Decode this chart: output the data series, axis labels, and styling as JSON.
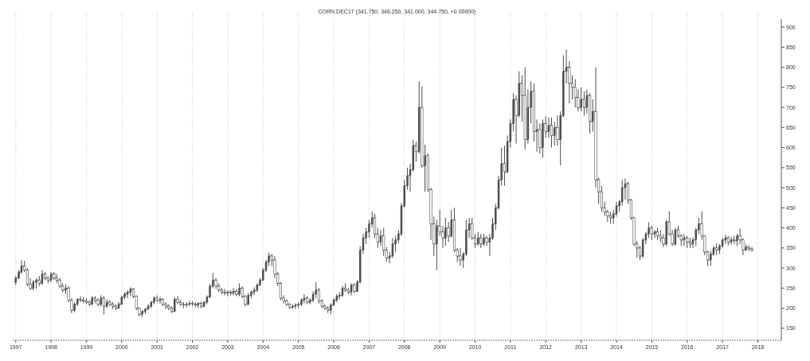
{
  "chart_data": {
    "type": "candlestick",
    "title": "CORN.DEC17 (341.750, 346.250, 341.000, 344.750, +0.00000)",
    "color": "#4d4d4d",
    "grid": "x",
    "xlim": [
      "1996-12",
      "2018-09"
    ],
    "xticks": [
      "1997",
      "1998",
      "1999",
      "2000",
      "2001",
      "2002",
      "2003",
      "2004",
      "2005",
      "2006",
      "2007",
      "2008",
      "2009",
      "2010",
      "2011",
      "2012",
      "2013",
      "2014",
      "2015",
      "2016",
      "2017",
      "2018"
    ],
    "ylim": [
      120,
      920
    ],
    "yticks": [
      150,
      200,
      250,
      300,
      350,
      400,
      450,
      500,
      550,
      600,
      650,
      700,
      750,
      800,
      850,
      900
    ],
    "x": [
      "1997-01",
      "1997-02",
      "1997-03",
      "1997-04",
      "1997-05",
      "1997-06",
      "1997-07",
      "1997-08",
      "1997-09",
      "1997-10",
      "1997-11",
      "1997-12",
      "1998-01",
      "1998-02",
      "1998-03",
      "1998-04",
      "1998-05",
      "1998-06",
      "1998-07",
      "1998-08",
      "1998-09",
      "1998-10",
      "1998-11",
      "1998-12",
      "1999-01",
      "1999-02",
      "1999-03",
      "1999-04",
      "1999-05",
      "1999-06",
      "1999-07",
      "1999-08",
      "1999-09",
      "1999-10",
      "1999-11",
      "1999-12",
      "2000-01",
      "2000-02",
      "2000-03",
      "2000-04",
      "2000-05",
      "2000-06",
      "2000-07",
      "2000-08",
      "2000-09",
      "2000-10",
      "2000-11",
      "2000-12",
      "2001-01",
      "2001-02",
      "2001-03",
      "2001-04",
      "2001-05",
      "2001-06",
      "2001-07",
      "2001-08",
      "2001-09",
      "2001-10",
      "2001-11",
      "2001-12",
      "2002-01",
      "2002-02",
      "2002-03",
      "2002-04",
      "2002-05",
      "2002-06",
      "2002-07",
      "2002-08",
      "2002-09",
      "2002-10",
      "2002-11",
      "2002-12",
      "2003-01",
      "2003-02",
      "2003-03",
      "2003-04",
      "2003-05",
      "2003-06",
      "2003-07",
      "2003-08",
      "2003-09",
      "2003-10",
      "2003-11",
      "2003-12",
      "2004-01",
      "2004-02",
      "2004-03",
      "2004-04",
      "2004-05",
      "2004-06",
      "2004-07",
      "2004-08",
      "2004-09",
      "2004-10",
      "2004-11",
      "2004-12",
      "2005-01",
      "2005-02",
      "2005-03",
      "2005-04",
      "2005-05",
      "2005-06",
      "2005-07",
      "2005-08",
      "2005-09",
      "2005-10",
      "2005-11",
      "2005-12",
      "2006-01",
      "2006-02",
      "2006-03",
      "2006-04",
      "2006-05",
      "2006-06",
      "2006-07",
      "2006-08",
      "2006-09",
      "2006-10",
      "2006-11",
      "2006-12",
      "2007-01",
      "2007-02",
      "2007-03",
      "2007-04",
      "2007-05",
      "2007-06",
      "2007-07",
      "2007-08",
      "2007-09",
      "2007-10",
      "2007-11",
      "2007-12",
      "2008-01",
      "2008-02",
      "2008-03",
      "2008-04",
      "2008-05",
      "2008-06",
      "2008-07",
      "2008-08",
      "2008-09",
      "2008-10",
      "2008-11",
      "2008-12",
      "2009-01",
      "2009-02",
      "2009-03",
      "2009-04",
      "2009-05",
      "2009-06",
      "2009-07",
      "2009-08",
      "2009-09",
      "2009-10",
      "2009-11",
      "2009-12",
      "2010-01",
      "2010-02",
      "2010-03",
      "2010-04",
      "2010-05",
      "2010-06",
      "2010-07",
      "2010-08",
      "2010-09",
      "2010-10",
      "2010-11",
      "2010-12",
      "2011-01",
      "2011-02",
      "2011-03",
      "2011-04",
      "2011-05",
      "2011-06",
      "2011-07",
      "2011-08",
      "2011-09",
      "2011-10",
      "2011-11",
      "2011-12",
      "2012-01",
      "2012-02",
      "2012-03",
      "2012-04",
      "2012-05",
      "2012-06",
      "2012-07",
      "2012-08",
      "2012-09",
      "2012-10",
      "2012-11",
      "2012-12",
      "2013-01",
      "2013-02",
      "2013-03",
      "2013-04",
      "2013-05",
      "2013-06",
      "2013-07",
      "2013-08",
      "2013-09",
      "2013-10",
      "2013-11",
      "2013-12",
      "2014-01",
      "2014-02",
      "2014-03",
      "2014-04",
      "2014-05",
      "2014-06",
      "2014-07",
      "2014-08",
      "2014-09",
      "2014-10",
      "2014-11",
      "2014-12",
      "2015-01",
      "2015-02",
      "2015-03",
      "2015-04",
      "2015-05",
      "2015-06",
      "2015-07",
      "2015-08",
      "2015-09",
      "2015-10",
      "2015-11",
      "2015-12",
      "2016-01",
      "2016-02",
      "2016-03",
      "2016-04",
      "2016-05",
      "2016-06",
      "2016-07",
      "2016-08",
      "2016-09",
      "2016-10",
      "2016-11",
      "2016-12",
      "2017-01",
      "2017-02",
      "2017-03",
      "2017-04",
      "2017-05",
      "2017-06",
      "2017-07",
      "2017-08",
      "2017-09",
      "2017-10",
      "2017-11"
    ],
    "ohlc": [
      [
        265,
        280,
        258,
        275
      ],
      [
        275,
        295,
        272,
        290
      ],
      [
        290,
        320,
        285,
        305
      ],
      [
        305,
        318,
        290,
        295
      ],
      [
        295,
        300,
        255,
        260
      ],
      [
        260,
        275,
        245,
        250
      ],
      [
        250,
        270,
        245,
        265
      ],
      [
        265,
        275,
        248,
        270
      ],
      [
        270,
        280,
        255,
        262
      ],
      [
        262,
        295,
        258,
        285
      ],
      [
        285,
        290,
        270,
        275
      ],
      [
        275,
        280,
        262,
        270
      ],
      [
        270,
        290,
        265,
        285
      ],
      [
        285,
        290,
        270,
        275
      ],
      [
        275,
        285,
        262,
        270
      ],
      [
        270,
        275,
        250,
        255
      ],
      [
        255,
        262,
        240,
        245
      ],
      [
        245,
        260,
        235,
        250
      ],
      [
        250,
        255,
        215,
        220
      ],
      [
        220,
        225,
        188,
        195
      ],
      [
        195,
        215,
        190,
        210
      ],
      [
        210,
        225,
        205,
        222
      ],
      [
        222,
        230,
        215,
        220
      ],
      [
        220,
        228,
        212,
        218
      ],
      [
        218,
        225,
        210,
        215
      ],
      [
        215,
        220,
        205,
        210
      ],
      [
        210,
        230,
        208,
        225
      ],
      [
        225,
        230,
        212,
        220
      ],
      [
        220,
        225,
        205,
        210
      ],
      [
        210,
        232,
        205,
        225
      ],
      [
        225,
        230,
        185,
        205
      ],
      [
        205,
        222,
        200,
        215
      ],
      [
        215,
        220,
        205,
        210
      ],
      [
        210,
        215,
        198,
        205
      ],
      [
        205,
        210,
        195,
        200
      ],
      [
        200,
        215,
        198,
        210
      ],
      [
        210,
        230,
        208,
        228
      ],
      [
        228,
        240,
        222,
        235
      ],
      [
        235,
        245,
        225,
        240
      ],
      [
        240,
        252,
        230,
        248
      ],
      [
        248,
        250,
        225,
        230
      ],
      [
        230,
        232,
        195,
        200
      ],
      [
        200,
        202,
        180,
        185
      ],
      [
        185,
        195,
        178,
        192
      ],
      [
        192,
        200,
        185,
        198
      ],
      [
        198,
        210,
        195,
        205
      ],
      [
        205,
        218,
        200,
        215
      ],
      [
        215,
        230,
        210,
        225
      ],
      [
        225,
        232,
        215,
        220
      ],
      [
        220,
        228,
        212,
        222
      ],
      [
        222,
        225,
        205,
        210
      ],
      [
        210,
        215,
        198,
        205
      ],
      [
        205,
        210,
        195,
        200
      ],
      [
        200,
        205,
        188,
        192
      ],
      [
        192,
        228,
        190,
        222
      ],
      [
        222,
        230,
        210,
        215
      ],
      [
        215,
        220,
        205,
        210
      ],
      [
        210,
        215,
        200,
        208
      ],
      [
        208,
        215,
        202,
        210
      ],
      [
        210,
        218,
        205,
        212
      ],
      [
        212,
        218,
        205,
        210
      ],
      [
        210,
        215,
        202,
        208
      ],
      [
        208,
        215,
        200,
        212
      ],
      [
        212,
        216,
        200,
        205
      ],
      [
        205,
        218,
        202,
        215
      ],
      [
        215,
        232,
        210,
        228
      ],
      [
        228,
        260,
        225,
        255
      ],
      [
        255,
        288,
        250,
        270
      ],
      [
        270,
        275,
        248,
        255
      ],
      [
        255,
        262,
        240,
        245
      ],
      [
        245,
        250,
        235,
        240
      ],
      [
        240,
        248,
        232,
        238
      ],
      [
        238,
        245,
        230,
        240
      ],
      [
        240,
        245,
        232,
        238
      ],
      [
        238,
        250,
        232,
        242
      ],
      [
        242,
        248,
        230,
        235
      ],
      [
        235,
        262,
        230,
        250
      ],
      [
        250,
        255,
        225,
        230
      ],
      [
        230,
        232,
        205,
        210
      ],
      [
        210,
        238,
        207,
        232
      ],
      [
        232,
        245,
        225,
        240
      ],
      [
        240,
        252,
        232,
        245
      ],
      [
        245,
        262,
        240,
        258
      ],
      [
        258,
        275,
        255,
        270
      ],
      [
        270,
        300,
        268,
        295
      ],
      [
        295,
        320,
        290,
        315
      ],
      [
        315,
        338,
        305,
        330
      ],
      [
        330,
        335,
        305,
        320
      ],
      [
        320,
        330,
        275,
        285
      ],
      [
        285,
        290,
        255,
        262
      ],
      [
        262,
        265,
        220,
        225
      ],
      [
        225,
        232,
        212,
        218
      ],
      [
        218,
        222,
        205,
        210
      ],
      [
        210,
        212,
        198,
        202
      ],
      [
        202,
        210,
        198,
        205
      ],
      [
        205,
        212,
        198,
        208
      ],
      [
        208,
        215,
        200,
        210
      ],
      [
        210,
        225,
        205,
        220
      ],
      [
        220,
        235,
        212,
        225
      ],
      [
        225,
        230,
        210,
        215
      ],
      [
        215,
        225,
        210,
        220
      ],
      [
        220,
        242,
        215,
        235
      ],
      [
        235,
        265,
        225,
        245
      ],
      [
        245,
        250,
        212,
        218
      ],
      [
        218,
        222,
        200,
        205
      ],
      [
        205,
        210,
        196,
        200
      ],
      [
        200,
        205,
        188,
        195
      ],
      [
        195,
        212,
        185,
        208
      ],
      [
        208,
        225,
        205,
        220
      ],
      [
        220,
        235,
        215,
        230
      ],
      [
        230,
        240,
        222,
        232
      ],
      [
        232,
        255,
        228,
        250
      ],
      [
        250,
        262,
        240,
        245
      ],
      [
        245,
        250,
        235,
        240
      ],
      [
        240,
        262,
        232,
        258
      ],
      [
        258,
        262,
        238,
        242
      ],
      [
        242,
        270,
        240,
        265
      ],
      [
        265,
        355,
        262,
        345
      ],
      [
        345,
        385,
        335,
        375
      ],
      [
        375,
        400,
        360,
        390
      ],
      [
        390,
        420,
        375,
        410
      ],
      [
        410,
        440,
        400,
        425
      ],
      [
        425,
        435,
        375,
        385
      ],
      [
        385,
        400,
        350,
        365
      ],
      [
        365,
        395,
        355,
        380
      ],
      [
        380,
        400,
        330,
        345
      ],
      [
        345,
        352,
        315,
        325
      ],
      [
        325,
        340,
        312,
        330
      ],
      [
        330,
        375,
        325,
        360
      ],
      [
        360,
        380,
        340,
        370
      ],
      [
        370,
        395,
        362,
        385
      ],
      [
        385,
        462,
        380,
        455
      ],
      [
        455,
        520,
        450,
        505
      ],
      [
        505,
        550,
        495,
        530
      ],
      [
        530,
        560,
        490,
        545
      ],
      [
        545,
        620,
        540,
        605
      ],
      [
        605,
        615,
        565,
        590
      ],
      [
        590,
        765,
        585,
        700
      ],
      [
        700,
        752,
        550,
        555
      ],
      [
        555,
        607,
        490,
        580
      ],
      [
        580,
        585,
        489,
        495
      ],
      [
        495,
        500,
        370,
        410
      ],
      [
        410,
        428,
        330,
        360
      ],
      [
        360,
        420,
        295,
        405
      ],
      [
        405,
        445,
        380,
        390
      ],
      [
        390,
        405,
        350,
        375
      ],
      [
        375,
        425,
        355,
        400
      ],
      [
        400,
        415,
        365,
        380
      ],
      [
        380,
        445,
        375,
        420
      ],
      [
        420,
        450,
        340,
        345
      ],
      [
        345,
        350,
        315,
        330
      ],
      [
        330,
        350,
        305,
        320
      ],
      [
        320,
        340,
        300,
        335
      ],
      [
        335,
        420,
        330,
        395
      ],
      [
        395,
        425,
        375,
        410
      ],
      [
        410,
        425,
        370,
        375
      ],
      [
        375,
        385,
        350,
        360
      ],
      [
        360,
        390,
        355,
        375
      ],
      [
        375,
        385,
        350,
        360
      ],
      [
        360,
        385,
        355,
        375
      ],
      [
        375,
        380,
        355,
        365
      ],
      [
        365,
        385,
        330,
        375
      ],
      [
        375,
        425,
        370,
        410
      ],
      [
        410,
        460,
        395,
        450
      ],
      [
        450,
        530,
        445,
        520
      ],
      [
        520,
        600,
        505,
        560
      ],
      [
        560,
        605,
        505,
        540
      ],
      [
        540,
        630,
        535,
        615
      ],
      [
        615,
        670,
        600,
        660
      ],
      [
        660,
        735,
        640,
        720
      ],
      [
        720,
        730,
        610,
        680
      ],
      [
        680,
        790,
        675,
        760
      ],
      [
        760,
        780,
        665,
        730
      ],
      [
        730,
        800,
        595,
        620
      ],
      [
        620,
        745,
        610,
        700
      ],
      [
        700,
        765,
        660,
        740
      ],
      [
        740,
        760,
        615,
        640
      ],
      [
        640,
        670,
        590,
        645
      ],
      [
        645,
        660,
        585,
        600
      ],
      [
        600,
        670,
        575,
        660
      ],
      [
        660,
        678,
        625,
        640
      ],
      [
        640,
        675,
        625,
        655
      ],
      [
        655,
        675,
        600,
        630
      ],
      [
        630,
        665,
        605,
        650
      ],
      [
        650,
        680,
        605,
        620
      ],
      [
        620,
        690,
        556,
        680
      ],
      [
        680,
        830,
        675,
        790
      ],
      [
        790,
        844,
        760,
        800
      ],
      [
        800,
        815,
        710,
        760
      ],
      [
        760,
        780,
        720,
        750
      ],
      [
        750,
        770,
        700,
        725
      ],
      [
        725,
        745,
        690,
        700
      ],
      [
        700,
        750,
        690,
        720
      ],
      [
        720,
        740,
        680,
        700
      ],
      [
        700,
        745,
        685,
        730
      ],
      [
        730,
        735,
        635,
        665
      ],
      [
        665,
        720,
        640,
        690
      ],
      [
        690,
        800,
        500,
        520
      ],
      [
        520,
        525,
        460,
        490
      ],
      [
        490,
        505,
        440,
        450
      ],
      [
        450,
        465,
        430,
        440
      ],
      [
        440,
        445,
        415,
        430
      ],
      [
        430,
        440,
        410,
        425
      ],
      [
        425,
        445,
        410,
        435
      ],
      [
        435,
        465,
        428,
        455
      ],
      [
        455,
        470,
        440,
        465
      ],
      [
        465,
        520,
        455,
        500
      ],
      [
        500,
        523,
        470,
        510
      ],
      [
        510,
        515,
        460,
        470
      ],
      [
        470,
        472,
        420,
        425
      ],
      [
        425,
        428,
        355,
        360
      ],
      [
        360,
        368,
        325,
        350
      ],
      [
        350,
        355,
        320,
        330
      ],
      [
        330,
        375,
        325,
        370
      ],
      [
        370,
        390,
        360,
        385
      ],
      [
        385,
        414,
        375,
        400
      ],
      [
        400,
        405,
        370,
        385
      ],
      [
        385,
        395,
        375,
        390
      ],
      [
        390,
        400,
        370,
        380
      ],
      [
        380,
        395,
        365,
        375
      ],
      [
        375,
        385,
        352,
        360
      ],
      [
        360,
        420,
        355,
        415
      ],
      [
        415,
        441,
        380,
        385
      ],
      [
        385,
        395,
        355,
        360
      ],
      [
        360,
        400,
        355,
        395
      ],
      [
        395,
        405,
        375,
        380
      ],
      [
        380,
        385,
        355,
        370
      ],
      [
        370,
        385,
        355,
        375
      ],
      [
        375,
        380,
        350,
        365
      ],
      [
        365,
        375,
        350,
        360
      ],
      [
        360,
        376,
        350,
        370
      ],
      [
        370,
        400,
        355,
        395
      ],
      [
        395,
        425,
        385,
        410
      ],
      [
        410,
        441,
        370,
        380
      ],
      [
        380,
        382,
        332,
        340
      ],
      [
        340,
        343,
        305,
        320
      ],
      [
        320,
        343,
        305,
        335
      ],
      [
        335,
        355,
        330,
        350
      ],
      [
        350,
        361,
        332,
        345
      ],
      [
        345,
        360,
        335,
        355
      ],
      [
        355,
        375,
        350,
        370
      ],
      [
        370,
        383,
        360,
        375
      ],
      [
        375,
        380,
        356,
        365
      ],
      [
        365,
        378,
        358,
        370
      ],
      [
        370,
        380,
        360,
        368
      ],
      [
        368,
        385,
        355,
        380
      ],
      [
        380,
        398,
        360,
        370
      ],
      [
        370,
        374,
        332,
        345
      ],
      [
        345,
        359,
        343,
        352
      ],
      [
        352,
        356,
        343,
        348
      ],
      [
        348,
        352,
        341,
        345
      ]
    ]
  }
}
